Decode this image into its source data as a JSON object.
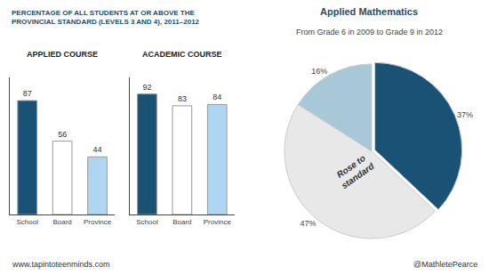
{
  "chart_data": [
    {
      "type": "bar",
      "title": "APPLIED COURSE",
      "categories": [
        "School",
        "Board",
        "Province"
      ],
      "values": [
        87,
        56,
        44
      ],
      "colors": [
        "#1a5276",
        "#ffffff",
        "#aed6f1"
      ],
      "ylim": [
        0,
        105
      ],
      "grid": false,
      "data_labels": true,
      "tick_labels": "x",
      "annotations": [
        "PERCENTAGE OF ALL STUDENTS AT OR ABOVE THE\nPROVINCIAL STANDARD (LEVELS 3 AND 4), 2011–2012",
        "www.tapintoteenminds.com"
      ]
    },
    {
      "type": "bar",
      "title": "ACADEMIC COURSE",
      "categories": [
        "School",
        "Board",
        "Province"
      ],
      "values": [
        92,
        83,
        84
      ],
      "colors": [
        "#1a5276",
        "#ffffff",
        "#aed6f1"
      ],
      "ylim": [
        0,
        105
      ],
      "grid": false,
      "data_labels": true,
      "tick_labels": "x"
    },
    {
      "type": "pie",
      "title": "Applied Mathematics",
      "subtitle": "From Grade 6 in 2009 to Grade 9 in 2012",
      "values": [
        37,
        47,
        16
      ],
      "value_labels": [
        "37%",
        "47%",
        "16%"
      ],
      "colors": [
        "#1a5276",
        "#e8e8e8",
        "#a8c8d8"
      ],
      "data_labels": true,
      "annotations": [
        "Rose to\nstandard",
        "@MathletePearce"
      ]
    }
  ]
}
